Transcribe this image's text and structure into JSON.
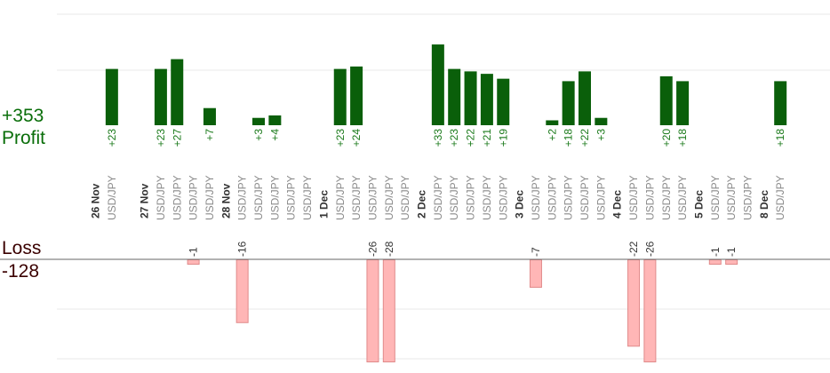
{
  "summary": {
    "profit_total": "+353",
    "profit_label": "Profit",
    "loss_label": "Loss",
    "loss_total": "-128"
  },
  "colors": {
    "profit_bar": "#0a5f0a",
    "profit_text": "#1a7a1a",
    "loss_bar": "#ffb6b6",
    "loss_border": "#e08a8a",
    "instrument_text": "#8a8a8a",
    "date_text": "#333333",
    "grid": "#e8e8e8",
    "axis": "#666666"
  },
  "chart_data": {
    "type": "bar",
    "dates": [
      {
        "label": "26 Nov",
        "slot": 0
      },
      {
        "label": "27 Nov",
        "slot": 3
      },
      {
        "label": "28 Nov",
        "slot": 8
      },
      {
        "label": "1 Dec",
        "slot": 14
      },
      {
        "label": "2 Dec",
        "slot": 20
      },
      {
        "label": "3 Dec",
        "slot": 26
      },
      {
        "label": "4 Dec",
        "slot": 32
      },
      {
        "label": "5 Dec",
        "slot": 37
      },
      {
        "label": "8 Dec",
        "slot": 41
      }
    ],
    "trades": [
      {
        "slot": 1,
        "instrument": "USD/JPY",
        "value": 23
      },
      {
        "slot": 4,
        "instrument": "USD/JPY",
        "value": 23
      },
      {
        "slot": 5,
        "instrument": "USD/JPY",
        "value": 27
      },
      {
        "slot": 6,
        "instrument": "USD/JPY",
        "value": -1
      },
      {
        "slot": 7,
        "instrument": "USD/JPY",
        "value": 7
      },
      {
        "slot": 9,
        "instrument": "USD/JPY",
        "value": -16
      },
      {
        "slot": 10,
        "instrument": "USD/JPY",
        "value": 3
      },
      {
        "slot": 11,
        "instrument": "USD/JPY",
        "value": 4
      },
      {
        "slot": 12,
        "instrument": "USD/JPY",
        "value": 0
      },
      {
        "slot": 13,
        "instrument": "USD/JPY",
        "value": 0
      },
      {
        "slot": 15,
        "instrument": "USD/JPY",
        "value": 23
      },
      {
        "slot": 16,
        "instrument": "USD/JPY",
        "value": 24
      },
      {
        "slot": 17,
        "instrument": "USD/JPY",
        "value": -26
      },
      {
        "slot": 18,
        "instrument": "USD/JPY",
        "value": -28
      },
      {
        "slot": 19,
        "instrument": "USD/JPY",
        "value": 0
      },
      {
        "slot": 21,
        "instrument": "USD/JPY",
        "value": 33
      },
      {
        "slot": 22,
        "instrument": "USD/JPY",
        "value": 23
      },
      {
        "slot": 23,
        "instrument": "USD/JPY",
        "value": 22
      },
      {
        "slot": 24,
        "instrument": "USD/JPY",
        "value": 21
      },
      {
        "slot": 25,
        "instrument": "USD/JPY",
        "value": 19
      },
      {
        "slot": 27,
        "instrument": "USD/JPY",
        "value": -7
      },
      {
        "slot": 28,
        "instrument": "USD/JPY",
        "value": 2
      },
      {
        "slot": 29,
        "instrument": "USD/JPY",
        "value": 18
      },
      {
        "slot": 30,
        "instrument": "USD/JPY",
        "value": 22
      },
      {
        "slot": 31,
        "instrument": "USD/JPY",
        "value": 3
      },
      {
        "slot": 33,
        "instrument": "USD/JPY",
        "value": -22
      },
      {
        "slot": 34,
        "instrument": "USD/JPY",
        "value": -26
      },
      {
        "slot": 35,
        "instrument": "USD/JPY",
        "value": 20
      },
      {
        "slot": 36,
        "instrument": "USD/JPY",
        "value": 18
      },
      {
        "slot": 38,
        "instrument": "USD/JPY",
        "value": -1
      },
      {
        "slot": 39,
        "instrument": "USD/JPY",
        "value": -1
      },
      {
        "slot": 40,
        "instrument": "USD/JPY",
        "value": 0
      },
      {
        "slot": 42,
        "instrument": "USD/JPY",
        "value": 18
      }
    ],
    "profit_axis_max": 22.5,
    "loss_axis_max": 26,
    "grid": true
  }
}
